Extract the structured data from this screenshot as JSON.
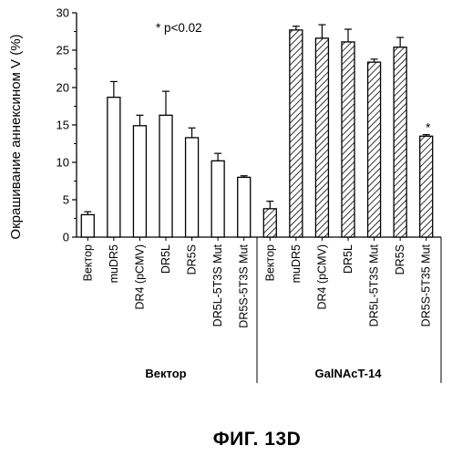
{
  "chart_data": {
    "type": "bar",
    "ylabel": "Окрашивание аннексином V (%)",
    "ylim": [
      0,
      30
    ],
    "yticks": [
      0,
      5,
      10,
      15,
      20,
      25,
      30
    ],
    "annotation": "* p<0.02",
    "fill_patterns": [
      "none",
      "diagonal-hatch"
    ],
    "categories": [
      "Вектор",
      "muDR5",
      "DR4 (pCMV)",
      "DR5L",
      "DR5S",
      "DR5L-5T3S Mut",
      "DR5S-5T3S Mut",
      "Вектор",
      "muDR5",
      "DR4 (pCMV)",
      "DR5L",
      "DR5L-5T3S Mut",
      "DR5S",
      "DR5S-5T35 Mut"
    ],
    "groups": [
      {
        "name": "Вектор",
        "fill": "open",
        "start": 0,
        "count": 7
      },
      {
        "name": "GalNAcT-14",
        "fill": "hatched",
        "start": 7,
        "count": 7
      }
    ],
    "values": [
      3.0,
      18.7,
      14.9,
      16.3,
      13.3,
      10.2,
      8.0,
      3.8,
      27.7,
      26.6,
      26.1,
      23.4,
      25.4,
      13.5
    ],
    "errors": [
      0.4,
      2.1,
      1.4,
      3.2,
      1.3,
      1.0,
      0.2,
      1.0,
      0.5,
      1.8,
      1.7,
      0.4,
      1.3,
      0.2
    ],
    "significant": [
      false,
      false,
      false,
      false,
      false,
      false,
      false,
      false,
      false,
      false,
      false,
      false,
      false,
      true
    ],
    "significance_marker": "*"
  },
  "caption": "ФИГ. 13D"
}
